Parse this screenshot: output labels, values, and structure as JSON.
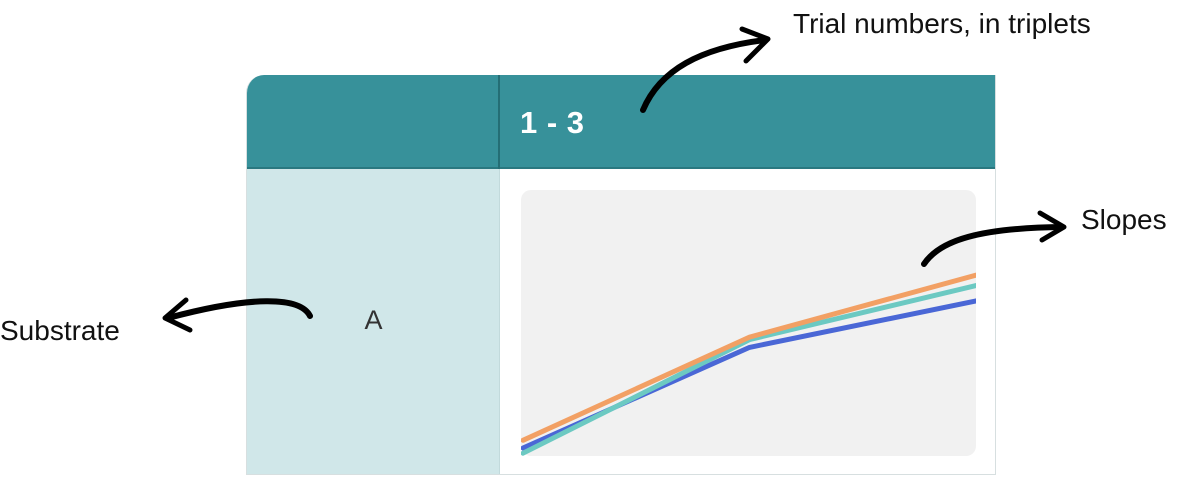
{
  "table": {
    "column_header": "1 - 3",
    "row_label": "A"
  },
  "annotations": {
    "top": "Trial numbers, in triplets",
    "right": "Slopes",
    "left": "Substrate"
  },
  "chart_data": {
    "type": "line",
    "title": "",
    "xlabel": "",
    "ylabel": "",
    "x": [
      0,
      1,
      2
    ],
    "xlim": [
      0,
      2
    ],
    "ylim": [
      0,
      1
    ],
    "grid": false,
    "series": [
      {
        "values": [
          0.0,
          0.39,
          0.57
        ],
        "color": "#4a67d6"
      },
      {
        "values": [
          -0.02,
          0.42,
          0.63
        ],
        "color": "#6cc9c2"
      },
      {
        "values": [
          0.03,
          0.43,
          0.67
        ],
        "color": "#f2a064"
      }
    ]
  }
}
